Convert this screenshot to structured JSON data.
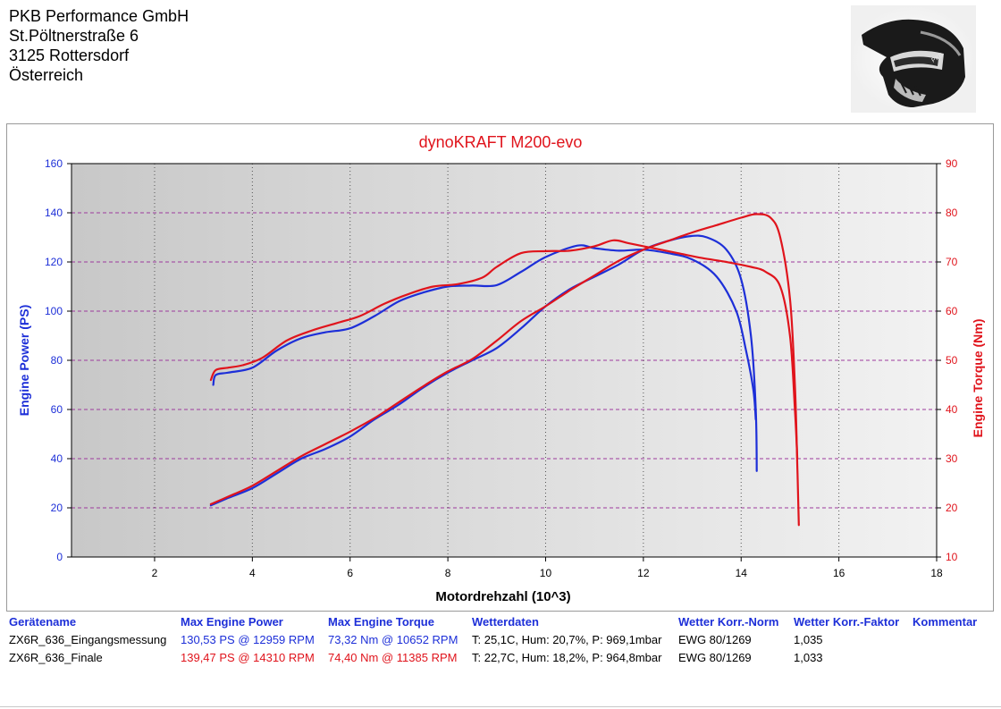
{
  "header": {
    "company": "PKB Performance GmbH",
    "street": "St.Pöltnerstraße 6",
    "city": "3125 Rottersdorf",
    "country": "Österreich",
    "logo_icon": "motocross-helmet-icon"
  },
  "chart_data": {
    "type": "line",
    "title": "dynoKRAFT M200-evo",
    "xlabel": "Motordrehzahl (10^3)",
    "ylabel_left": "Engine Power (PS)",
    "ylabel_right": "Engine Torque (Nm)",
    "xlim": [
      0.3,
      18
    ],
    "ylim_left": [
      0,
      160
    ],
    "ylim_right": [
      10,
      90
    ],
    "x_ticks": [
      2,
      4,
      6,
      8,
      10,
      12,
      14,
      16,
      18
    ],
    "y_ticks_left": [
      0,
      20,
      40,
      60,
      80,
      100,
      120,
      140,
      160
    ],
    "y_ticks_right": [
      10,
      20,
      30,
      40,
      50,
      60,
      70,
      80,
      90
    ],
    "grid": true,
    "colors": {
      "run1": "#1d2fd8",
      "run2": "#e0141c",
      "grid": "#9d3a9d",
      "plot_bg_left": "#c8c8c8",
      "plot_bg_right": "#f2f2f2"
    },
    "series": [
      {
        "run": "ZX6R_636_Eingangsmessung",
        "quantity": "power",
        "axis": "left",
        "color": "#1d2fd8",
        "points": [
          [
            3.15,
            21
          ],
          [
            3.5,
            24
          ],
          [
            4,
            28
          ],
          [
            4.5,
            34
          ],
          [
            5,
            40
          ],
          [
            5.5,
            44
          ],
          [
            6,
            49
          ],
          [
            6.5,
            56
          ],
          [
            7,
            62
          ],
          [
            7.5,
            69
          ],
          [
            8,
            75
          ],
          [
            8.5,
            80
          ],
          [
            9,
            85
          ],
          [
            9.5,
            93
          ],
          [
            10,
            102
          ],
          [
            10.5,
            109
          ],
          [
            11,
            114
          ],
          [
            11.5,
            119
          ],
          [
            12,
            125
          ],
          [
            12.5,
            128.5
          ],
          [
            12.96,
            130.5
          ],
          [
            13.3,
            130
          ],
          [
            13.7,
            125
          ],
          [
            14.0,
            113
          ],
          [
            14.2,
            90
          ],
          [
            14.3,
            60
          ],
          [
            14.32,
            35
          ]
        ]
      },
      {
        "run": "ZX6R_636_Eingangsmessung",
        "quantity": "torque",
        "axis": "right",
        "color": "#1d2fd8",
        "points": [
          [
            3.2,
            45
          ],
          [
            3.25,
            47
          ],
          [
            3.5,
            47.5
          ],
          [
            4,
            48.5
          ],
          [
            4.5,
            52
          ],
          [
            5,
            54.5
          ],
          [
            5.5,
            55.7
          ],
          [
            6,
            56.5
          ],
          [
            6.5,
            59
          ],
          [
            7,
            62
          ],
          [
            7.5,
            63.8
          ],
          [
            8,
            65
          ],
          [
            8.5,
            65.2
          ],
          [
            9,
            65.3
          ],
          [
            9.5,
            68
          ],
          [
            10,
            71
          ],
          [
            10.652,
            73.32
          ],
          [
            11,
            72.8
          ],
          [
            11.5,
            72.3
          ],
          [
            12,
            72.5
          ],
          [
            12.5,
            71.8
          ],
          [
            13,
            70.5
          ],
          [
            13.5,
            67
          ],
          [
            13.9,
            60
          ],
          [
            14.1,
            52
          ],
          [
            14.25,
            44
          ],
          [
            14.3,
            38
          ]
        ]
      },
      {
        "run": "ZX6R_636_Finale",
        "quantity": "power",
        "axis": "left",
        "color": "#e0141c",
        "points": [
          [
            3.15,
            21.5
          ],
          [
            3.5,
            24.5
          ],
          [
            4,
            29
          ],
          [
            4.5,
            35
          ],
          [
            5,
            41
          ],
          [
            5.5,
            46
          ],
          [
            6,
            51
          ],
          [
            6.5,
            56.5
          ],
          [
            7,
            63
          ],
          [
            7.5,
            69.5
          ],
          [
            8,
            75.5
          ],
          [
            8.5,
            80.5
          ],
          [
            9,
            88
          ],
          [
            9.5,
            96
          ],
          [
            10,
            102
          ],
          [
            10.5,
            108.5
          ],
          [
            11,
            114.5
          ],
          [
            11.5,
            120.5
          ],
          [
            12,
            125
          ],
          [
            12.5,
            128.5
          ],
          [
            13,
            132
          ],
          [
            13.5,
            135
          ],
          [
            14,
            138
          ],
          [
            14.31,
            139.47
          ],
          [
            14.6,
            138
          ],
          [
            14.8,
            130
          ],
          [
            15.0,
            105
          ],
          [
            15.1,
            70
          ],
          [
            15.15,
            37
          ],
          [
            15.18,
            13
          ]
        ]
      },
      {
        "run": "ZX6R_636_Finale",
        "quantity": "torque",
        "axis": "right",
        "color": "#e0141c",
        "points": [
          [
            3.15,
            46
          ],
          [
            3.25,
            48
          ],
          [
            3.5,
            48.5
          ],
          [
            3.8,
            49
          ],
          [
            4.2,
            50.5
          ],
          [
            4.7,
            54
          ],
          [
            5.2,
            56
          ],
          [
            5.7,
            57.5
          ],
          [
            6.2,
            59
          ],
          [
            6.7,
            61.5
          ],
          [
            7.2,
            63.5
          ],
          [
            7.7,
            65
          ],
          [
            8.2,
            65.5
          ],
          [
            8.7,
            66.8
          ],
          [
            9,
            69
          ],
          [
            9.5,
            71.8
          ],
          [
            10,
            72.2
          ],
          [
            10.5,
            72.3
          ],
          [
            11,
            73.2
          ],
          [
            11.385,
            74.4
          ],
          [
            11.7,
            73.8
          ],
          [
            12.2,
            72.8
          ],
          [
            12.7,
            71.8
          ],
          [
            13.2,
            70.8
          ],
          [
            13.7,
            70
          ],
          [
            14.2,
            69
          ],
          [
            14.5,
            68
          ],
          [
            14.8,
            65
          ],
          [
            15.0,
            55
          ],
          [
            15.1,
            40
          ],
          [
            15.15,
            30
          ]
        ]
      }
    ]
  },
  "results": {
    "headers": {
      "device": "Gerätename",
      "max_power": "Max Engine Power",
      "max_torque": "Max Engine Torque",
      "weather": "Wetterdaten",
      "norm": "Wetter Korr.-Norm",
      "factor": "Wetter Korr.-Faktor",
      "comment": "Kommentar"
    },
    "rows": [
      {
        "device": "ZX6R_636_Eingangsmessung",
        "max_power": "130,53 PS @ 12959 RPM",
        "max_torque": "73,32 Nm @ 10652 RPM",
        "weather": "T: 25,1C, Hum: 20,7%, P: 969,1mbar",
        "norm": "EWG 80/1269",
        "factor": "1,035",
        "comment": "",
        "color": "#1d2fd8"
      },
      {
        "device": "ZX6R_636_Finale",
        "max_power": "139,47 PS @ 14310 RPM",
        "max_torque": "74,40 Nm @ 11385 RPM",
        "weather": "T: 22,7C, Hum: 18,2%, P: 964,8mbar",
        "norm": "EWG 80/1269",
        "factor": "1,033",
        "comment": "",
        "color": "#e0141c"
      }
    ]
  }
}
